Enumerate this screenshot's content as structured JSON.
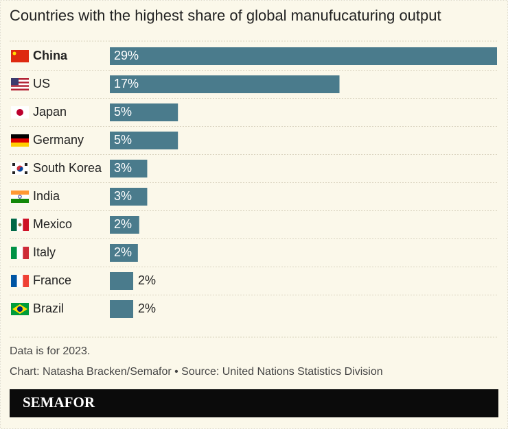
{
  "chart_data": {
    "type": "bar",
    "orientation": "horizontal",
    "title": "Countries with the highest share of global manufucaturing output",
    "categories": [
      "China",
      "US",
      "Japan",
      "Germany",
      "South Korea",
      "India",
      "Mexico",
      "Italy",
      "France",
      "Brazil"
    ],
    "values": [
      29,
      17.2,
      5.1,
      5.1,
      2.8,
      2.8,
      2.2,
      2.1,
      1.75,
      1.75
    ],
    "value_labels": [
      "29%",
      "17%",
      "5%",
      "5%",
      "3%",
      "3%",
      "2%",
      "2%",
      "2%",
      "2%"
    ],
    "color": "#4a7b8c",
    "note": "Data is for 2023.",
    "source": "Chart: Natasha Bracken/Semafor • Source: United Nations Statistics Division",
    "brand": "SEMAFOR"
  }
}
